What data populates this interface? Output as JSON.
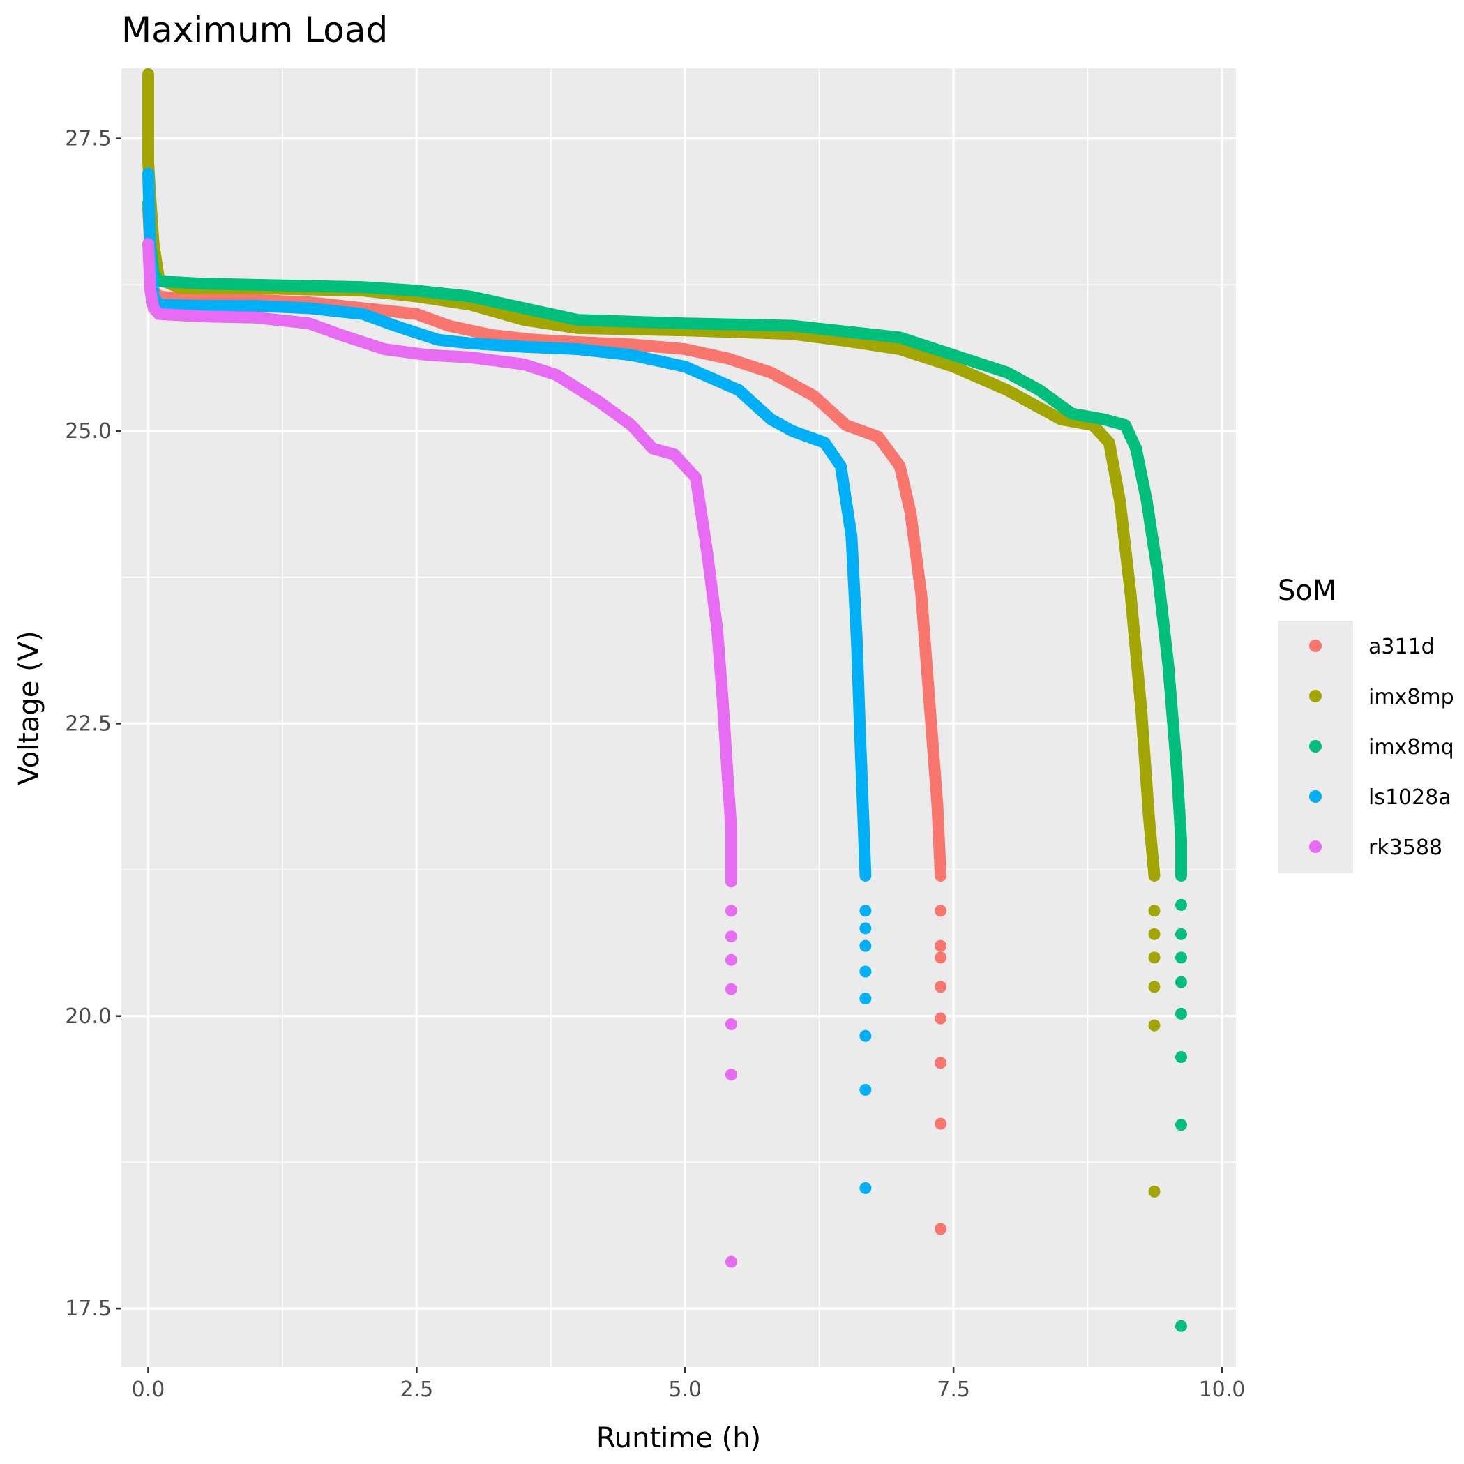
{
  "chart_data": {
    "type": "scatter",
    "title": "Maximum Load",
    "xlabel": "Runtime (h)",
    "ylabel": "Voltage (V)",
    "xlim": [
      -0.25,
      10.13
    ],
    "ylim": [
      17.0,
      28.1
    ],
    "x_ticks": [
      "0.0",
      "2.5",
      "5.0",
      "7.5",
      "10.0"
    ],
    "y_ticks": [
      "17.5",
      "20.0",
      "22.5",
      "25.0",
      "27.5"
    ],
    "grid": true,
    "legend": {
      "title": "SoM",
      "placement": "right"
    },
    "series": [
      {
        "name": "a311d",
        "color": "#F8766D",
        "points": [
          [
            0.0,
            26.9
          ],
          [
            0.02,
            26.5
          ],
          [
            0.05,
            26.2
          ],
          [
            0.1,
            26.15
          ],
          [
            0.5,
            26.12
          ],
          [
            1.0,
            26.12
          ],
          [
            1.5,
            26.1
          ],
          [
            2.0,
            26.05
          ],
          [
            2.5,
            26.0
          ],
          [
            2.8,
            25.9
          ],
          [
            3.2,
            25.82
          ],
          [
            3.6,
            25.78
          ],
          [
            4.0,
            25.76
          ],
          [
            4.5,
            25.74
          ],
          [
            5.0,
            25.7
          ],
          [
            5.4,
            25.62
          ],
          [
            5.8,
            25.5
          ],
          [
            6.2,
            25.3
          ],
          [
            6.5,
            25.05
          ],
          [
            6.8,
            24.95
          ],
          [
            7.0,
            24.7
          ],
          [
            7.1,
            24.3
          ],
          [
            7.2,
            23.6
          ],
          [
            7.25,
            23.0
          ],
          [
            7.3,
            22.4
          ],
          [
            7.35,
            21.8
          ],
          [
            7.38,
            21.2
          ],
          [
            7.38,
            20.9
          ],
          [
            7.38,
            20.6
          ],
          [
            7.38,
            20.5
          ],
          [
            7.38,
            20.25
          ],
          [
            7.38,
            19.98
          ],
          [
            7.38,
            19.6
          ],
          [
            7.38,
            19.08
          ],
          [
            7.38,
            18.18
          ]
        ]
      },
      {
        "name": "imx8mp",
        "color": "#A3A500",
        "points": [
          [
            0.0,
            28.05
          ],
          [
            0.0,
            27.5
          ],
          [
            0.0,
            27.3
          ],
          [
            0.02,
            27.0
          ],
          [
            0.05,
            26.6
          ],
          [
            0.1,
            26.3
          ],
          [
            0.3,
            26.22
          ],
          [
            1.0,
            26.22
          ],
          [
            2.0,
            26.2
          ],
          [
            2.5,
            26.15
          ],
          [
            3.0,
            26.08
          ],
          [
            3.5,
            25.95
          ],
          [
            4.0,
            25.88
          ],
          [
            5.0,
            25.86
          ],
          [
            6.0,
            25.83
          ],
          [
            6.5,
            25.77
          ],
          [
            7.0,
            25.7
          ],
          [
            7.5,
            25.55
          ],
          [
            8.0,
            25.35
          ],
          [
            8.5,
            25.1
          ],
          [
            8.8,
            25.05
          ],
          [
            8.95,
            24.9
          ],
          [
            9.05,
            24.4
          ],
          [
            9.15,
            23.6
          ],
          [
            9.25,
            22.6
          ],
          [
            9.32,
            21.7
          ],
          [
            9.37,
            21.2
          ],
          [
            9.37,
            20.9
          ],
          [
            9.37,
            20.7
          ],
          [
            9.37,
            20.5
          ],
          [
            9.37,
            20.25
          ],
          [
            9.37,
            19.92
          ],
          [
            9.37,
            18.5
          ]
        ]
      },
      {
        "name": "imx8mq",
        "color": "#00BF7D",
        "points": [
          [
            0.0,
            26.95
          ],
          [
            0.02,
            26.6
          ],
          [
            0.05,
            26.35
          ],
          [
            0.1,
            26.28
          ],
          [
            0.5,
            26.26
          ],
          [
            1.0,
            26.25
          ],
          [
            2.0,
            26.23
          ],
          [
            2.5,
            26.2
          ],
          [
            3.0,
            26.15
          ],
          [
            3.5,
            26.05
          ],
          [
            4.0,
            25.95
          ],
          [
            5.0,
            25.92
          ],
          [
            6.0,
            25.9
          ],
          [
            6.5,
            25.85
          ],
          [
            7.0,
            25.8
          ],
          [
            7.5,
            25.65
          ],
          [
            8.0,
            25.5
          ],
          [
            8.3,
            25.35
          ],
          [
            8.6,
            25.15
          ],
          [
            8.9,
            25.1
          ],
          [
            9.1,
            25.05
          ],
          [
            9.2,
            24.85
          ],
          [
            9.3,
            24.4
          ],
          [
            9.4,
            23.8
          ],
          [
            9.5,
            23.0
          ],
          [
            9.58,
            22.1
          ],
          [
            9.62,
            21.5
          ],
          [
            9.62,
            21.2
          ],
          [
            9.62,
            20.95
          ],
          [
            9.62,
            20.7
          ],
          [
            9.62,
            20.5
          ],
          [
            9.62,
            20.29
          ],
          [
            9.62,
            20.02
          ],
          [
            9.62,
            19.65
          ],
          [
            9.62,
            19.07
          ],
          [
            9.62,
            17.35
          ]
        ]
      },
      {
        "name": "ls1028a",
        "color": "#00B0F6",
        "points": [
          [
            0.0,
            27.2
          ],
          [
            0.02,
            26.5
          ],
          [
            0.05,
            26.15
          ],
          [
            0.1,
            26.08
          ],
          [
            0.5,
            26.07
          ],
          [
            1.0,
            26.07
          ],
          [
            1.5,
            26.05
          ],
          [
            2.0,
            26.0
          ],
          [
            2.3,
            25.9
          ],
          [
            2.7,
            25.78
          ],
          [
            3.0,
            25.75
          ],
          [
            3.5,
            25.72
          ],
          [
            4.0,
            25.7
          ],
          [
            4.5,
            25.65
          ],
          [
            5.0,
            25.55
          ],
          [
            5.5,
            25.35
          ],
          [
            5.8,
            25.1
          ],
          [
            6.0,
            25.0
          ],
          [
            6.3,
            24.9
          ],
          [
            6.45,
            24.7
          ],
          [
            6.55,
            24.1
          ],
          [
            6.6,
            23.2
          ],
          [
            6.63,
            22.4
          ],
          [
            6.66,
            21.7
          ],
          [
            6.68,
            21.2
          ],
          [
            6.68,
            20.9
          ],
          [
            6.68,
            20.75
          ],
          [
            6.68,
            20.6
          ],
          [
            6.68,
            20.38
          ],
          [
            6.68,
            20.15
          ],
          [
            6.68,
            19.83
          ],
          [
            6.68,
            19.37
          ],
          [
            6.68,
            18.53
          ]
        ]
      },
      {
        "name": "rk3588",
        "color": "#E76BF3",
        "points": [
          [
            0.0,
            26.6
          ],
          [
            0.02,
            26.2
          ],
          [
            0.05,
            26.05
          ],
          [
            0.1,
            26.0
          ],
          [
            0.5,
            25.98
          ],
          [
            1.0,
            25.97
          ],
          [
            1.5,
            25.92
          ],
          [
            1.8,
            25.82
          ],
          [
            2.2,
            25.7
          ],
          [
            2.6,
            25.65
          ],
          [
            3.0,
            25.63
          ],
          [
            3.5,
            25.57
          ],
          [
            3.8,
            25.48
          ],
          [
            4.2,
            25.25
          ],
          [
            4.5,
            25.05
          ],
          [
            4.7,
            24.85
          ],
          [
            4.9,
            24.8
          ],
          [
            5.1,
            24.6
          ],
          [
            5.2,
            24.0
          ],
          [
            5.3,
            23.3
          ],
          [
            5.35,
            22.7
          ],
          [
            5.4,
            22.0
          ],
          [
            5.43,
            21.6
          ],
          [
            5.43,
            21.4
          ],
          [
            5.43,
            21.15
          ],
          [
            5.43,
            20.9
          ],
          [
            5.43,
            20.68
          ],
          [
            5.43,
            20.48
          ],
          [
            5.43,
            20.23
          ],
          [
            5.43,
            19.93
          ],
          [
            5.43,
            19.5
          ],
          [
            5.43,
            17.9
          ]
        ]
      }
    ]
  }
}
